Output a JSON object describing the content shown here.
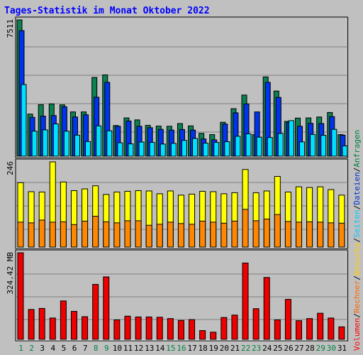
{
  "chart_data": {
    "type": "bar",
    "title": "Tages-Statistik im Monat Oktober 2022",
    "days": [
      "1",
      "2",
      "3",
      "4",
      "5",
      "6",
      "7",
      "8",
      "9",
      "10",
      "11",
      "12",
      "13",
      "14",
      "15",
      "16",
      "17",
      "18",
      "19",
      "20",
      "21",
      "22",
      "23",
      "24",
      "25",
      "26",
      "27",
      "28",
      "29",
      "30",
      "31"
    ],
    "weekend_days": [
      1,
      2,
      8,
      9,
      15,
      16,
      22,
      23,
      29,
      30
    ],
    "colors": {
      "day_normal": "#000000",
      "day_weekend": "#008040",
      "anfragen": "#0b8050",
      "dateien": "#0033ee",
      "seiten": "#00e0ff",
      "besuche": "#ffff00",
      "rechner": "#ff8800",
      "volumen": "#ee0000",
      "label_volumen": "#ff0000",
      "label_rechner": "#ff6600",
      "label_besuche": "#ffcc00",
      "label_seiten": "#00ccff",
      "label_dateien": "#0033cc",
      "label_anfragen": "#008040"
    },
    "panels": [
      {
        "id": "requests",
        "max_label": "7511",
        "max": 7511,
        "series": [
          {
            "name": "Anfragen",
            "values": [
              7511,
              2320,
              2840,
              2880,
              2830,
              2440,
              2440,
              4340,
              4480,
              1690,
              2110,
              2000,
              1700,
              1660,
              1650,
              1800,
              1670,
              1260,
              1190,
              1870,
              2620,
              3370,
              1190,
              4370,
              3590,
              1920,
              2100,
              2110,
              2160,
              2410,
              1190
            ]
          },
          {
            "name": "Dateien",
            "values": [
              6920,
              2140,
              2210,
              2240,
              2720,
              2160,
              2280,
              3250,
              4070,
              1650,
              1940,
              1650,
              1570,
              1480,
              1440,
              1470,
              1440,
              950,
              900,
              1770,
              2390,
              2880,
              2440,
              4070,
              3240,
              1860,
              1650,
              1810,
              1800,
              2180,
              1160
            ]
          },
          {
            "name": "Seiten",
            "values": [
              3950,
              1380,
              1450,
              1780,
              1380,
              1160,
              810,
              1670,
              1400,
              740,
              680,
              780,
              760,
              670,
              710,
              870,
              980,
              720,
              760,
              800,
              1100,
              1230,
              1050,
              1030,
              1250,
              1960,
              790,
              1200,
              1150,
              1480,
              570
            ]
          }
        ]
      },
      {
        "id": "visits",
        "max_label": "246",
        "max": 246,
        "series": [
          {
            "name": "Besuche",
            "values": [
              186,
              160,
              159,
              246,
              188,
              163,
              168,
              177,
              152,
              159,
              161,
              163,
              162,
              154,
              162,
              150,
              153,
              161,
              160,
              154,
              157,
              224,
              157,
              162,
              204,
              159,
              174,
              172,
              174,
              166,
              150
            ]
          },
          {
            "name": "Rechner",
            "values": [
              72,
              70,
              78,
              72,
              73,
              65,
              75,
              89,
              73,
              70,
              76,
              76,
              63,
              66,
              72,
              68,
              66,
              75,
              72,
              69,
              75,
              109,
              76,
              81,
              94,
              74,
              72,
              73,
              72,
              70,
              69
            ]
          }
        ]
      },
      {
        "id": "volume",
        "max_label": "324.42 MB",
        "max": 324.42,
        "series": [
          {
            "name": "Volumen",
            "values": [
              324.42,
              112,
              116,
              80,
              144,
              105,
              85,
              206,
              234,
              73,
              87,
              84,
              84,
              83,
              78,
              71,
              74,
              33,
              27,
              82,
              91,
              286,
              115,
              232,
              73,
              150,
              70,
              78,
              98,
              80,
              47
            ]
          }
        ]
      }
    ],
    "right_labels": [
      {
        "text": "Volumen",
        "color_key": "label_volumen"
      },
      {
        "text": "/",
        "color_key": "day_normal"
      },
      {
        "text": "Rechner",
        "color_key": "label_rechner"
      },
      {
        "text": "/",
        "color_key": "day_normal"
      },
      {
        "text": "Besuche",
        "color_key": "label_besuche"
      },
      {
        "text": "/",
        "color_key": "day_normal"
      },
      {
        "text": "Seiten",
        "color_key": "label_seiten"
      },
      {
        "text": "/",
        "color_key": "day_normal"
      },
      {
        "text": "Dateien",
        "color_key": "label_dateien"
      },
      {
        "text": "/",
        "color_key": "day_normal"
      },
      {
        "text": "Anfragen",
        "color_key": "label_anfragen"
      }
    ]
  }
}
